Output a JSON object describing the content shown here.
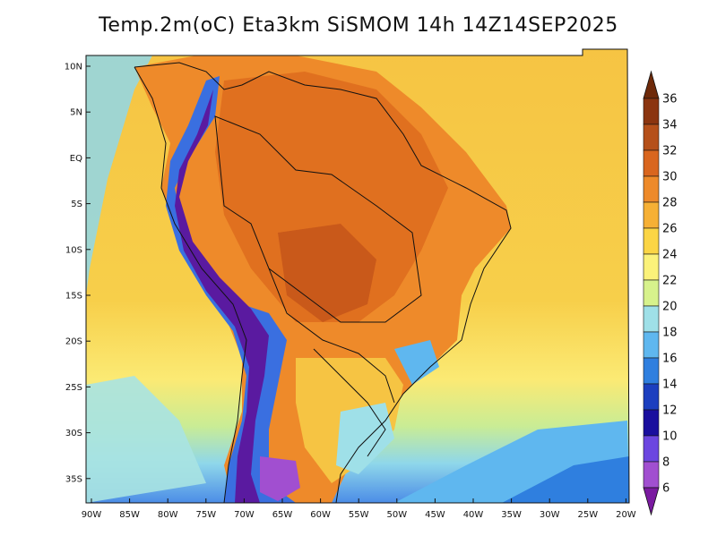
{
  "title": "Temp.2m(oC) Eta3km SiSMOM 14h 14Z14SEP2025",
  "lat_labels": [
    "10N",
    "5N",
    "EQ",
    "5S",
    "10S",
    "15S",
    "20S",
    "25S",
    "30S",
    "35S"
  ],
  "lon_labels": [
    "90W",
    "85W",
    "80W",
    "75W",
    "70W",
    "65W",
    "60W",
    "55W",
    "50W",
    "45W",
    "40W",
    "35W",
    "30W",
    "25W",
    "20W"
  ],
  "colorbar": {
    "labels": [
      "36",
      "34",
      "32",
      "30",
      "28",
      "26",
      "24",
      "22",
      "20",
      "18",
      "16",
      "14",
      "12",
      "10",
      "8",
      "6"
    ],
    "colors_top_to_bottom": [
      "#6e2a0a",
      "#8b3510",
      "#b5501a",
      "#d9661f",
      "#ee8a2a",
      "#f6b035",
      "#fbd545",
      "#fbf27a",
      "#d7f28c",
      "#9fe0e8",
      "#5fb7ef",
      "#2f7fdf",
      "#1c3fbf",
      "#1a0f9e",
      "#6c46e0",
      "#a14fd0",
      "#7a1aa0"
    ]
  },
  "field_colors": {
    "hot": "#e87a22",
    "warm": "#f29a2c",
    "ocean_warm": "#f6c443",
    "ocean_mild": "#fbe36a",
    "cool": "#9fe0e8",
    "cold": "#3a6fe0",
    "very_cold": "#5a1aa0"
  }
}
